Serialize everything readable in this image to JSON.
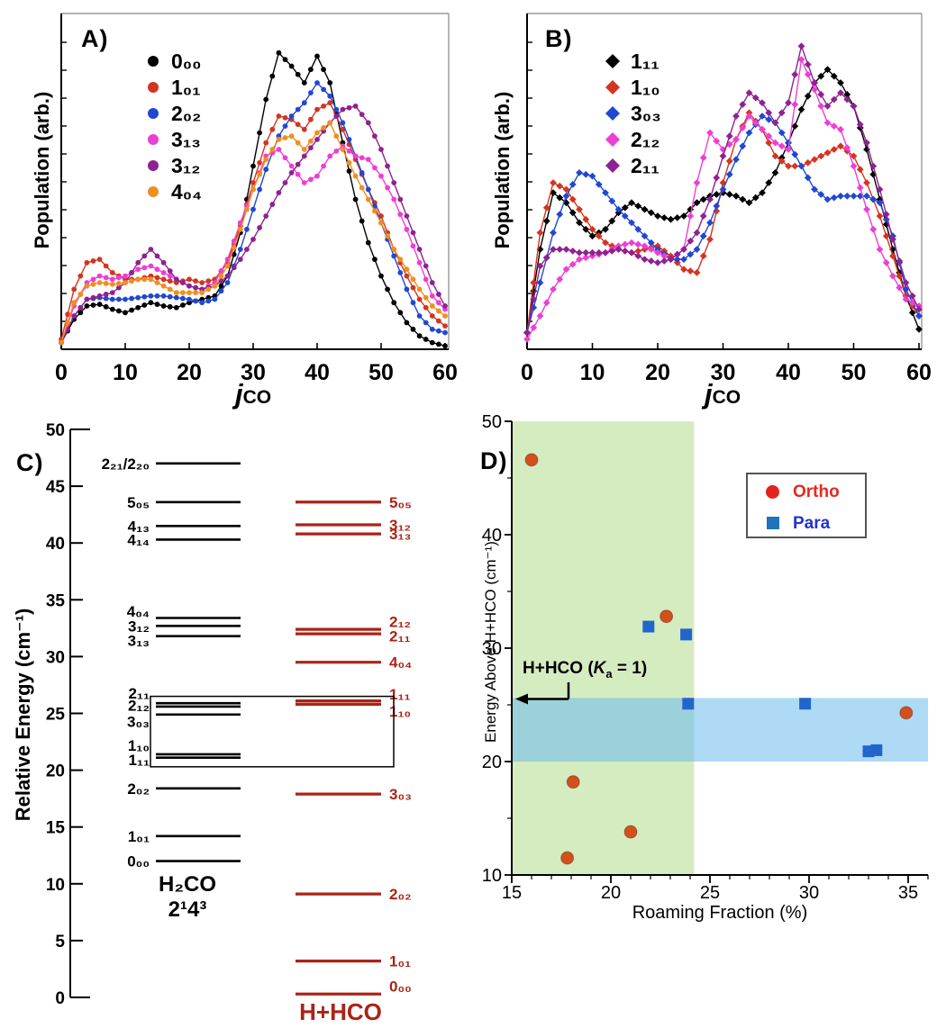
{
  "background": "#ffffff",
  "chart_data": [
    {
      "id": "A",
      "type": "line",
      "title": "A)",
      "xlabel_j": "j",
      "xlabel_co": "CO",
      "ylabel": "Population (arb.)",
      "xlim": [
        0,
        60.6
      ],
      "ylim": [
        0,
        1
      ],
      "x_ticks": [
        0,
        10,
        20,
        30,
        40,
        50,
        60
      ],
      "grid": false,
      "legend_position": "upper-left",
      "x": [
        0,
        2,
        4,
        6,
        8,
        10,
        12,
        14,
        16,
        18,
        20,
        22,
        24,
        26,
        28,
        30,
        32,
        34,
        36,
        38,
        40,
        42,
        44,
        46,
        48,
        50,
        52,
        54,
        56,
        58,
        60
      ],
      "series": [
        {
          "name": "0₀₀",
          "color": "#000000",
          "marker": "circle",
          "values": [
            0.02,
            0.09,
            0.13,
            0.135,
            0.12,
            0.11,
            0.125,
            0.14,
            0.13,
            0.125,
            0.14,
            0.15,
            0.16,
            0.22,
            0.35,
            0.55,
            0.75,
            0.89,
            0.85,
            0.8,
            0.88,
            0.8,
            0.62,
            0.45,
            0.32,
            0.22,
            0.14,
            0.08,
            0.04,
            0.02,
            0.01
          ]
        },
        {
          "name": "1₀₁",
          "color": "#d43420",
          "marker": "circle",
          "values": [
            0.03,
            0.18,
            0.26,
            0.27,
            0.23,
            0.21,
            0.21,
            0.22,
            0.21,
            0.2,
            0.21,
            0.2,
            0.21,
            0.26,
            0.37,
            0.5,
            0.62,
            0.7,
            0.69,
            0.66,
            0.72,
            0.74,
            0.66,
            0.57,
            0.48,
            0.4,
            0.3,
            0.22,
            0.15,
            0.1,
            0.07
          ]
        },
        {
          "name": "2₀₂",
          "color": "#2048d0",
          "marker": "circle",
          "values": [
            0.02,
            0.1,
            0.15,
            0.155,
            0.15,
            0.15,
            0.155,
            0.16,
            0.16,
            0.155,
            0.15,
            0.14,
            0.15,
            0.2,
            0.3,
            0.42,
            0.54,
            0.64,
            0.7,
            0.74,
            0.8,
            0.76,
            0.68,
            0.58,
            0.48,
            0.38,
            0.28,
            0.18,
            0.1,
            0.06,
            0.05
          ]
        },
        {
          "name": "3₁₃",
          "color": "#ec3fd4",
          "marker": "circle",
          "values": [
            0.02,
            0.13,
            0.2,
            0.22,
            0.21,
            0.22,
            0.24,
            0.25,
            0.23,
            0.21,
            0.19,
            0.18,
            0.2,
            0.27,
            0.38,
            0.48,
            0.58,
            0.6,
            0.55,
            0.5,
            0.52,
            0.58,
            0.61,
            0.58,
            0.57,
            0.52,
            0.45,
            0.36,
            0.26,
            0.16,
            0.12
          ]
        },
        {
          "name": "3₁₂",
          "color": "#8e2290",
          "marker": "circle",
          "values": [
            0.02,
            0.1,
            0.15,
            0.16,
            0.17,
            0.2,
            0.26,
            0.3,
            0.26,
            0.21,
            0.19,
            0.18,
            0.19,
            0.22,
            0.27,
            0.33,
            0.4,
            0.47,
            0.53,
            0.58,
            0.63,
            0.68,
            0.72,
            0.73,
            0.68,
            0.6,
            0.5,
            0.4,
            0.3,
            0.2,
            0.13
          ]
        },
        {
          "name": "4₀₄",
          "color": "#ef8f1f",
          "marker": "circle",
          "values": [
            0.02,
            0.14,
            0.19,
            0.2,
            0.195,
            0.2,
            0.21,
            0.21,
            0.19,
            0.17,
            0.17,
            0.17,
            0.19,
            0.25,
            0.36,
            0.48,
            0.57,
            0.63,
            0.64,
            0.6,
            0.65,
            0.68,
            0.6,
            0.52,
            0.45,
            0.38,
            0.3,
            0.24,
            0.18,
            0.13,
            0.1
          ]
        }
      ]
    },
    {
      "id": "B",
      "type": "line",
      "title": "B)",
      "xlabel_j": "j",
      "xlabel_co": "CO",
      "ylabel": "Population (arb.)",
      "xlim": [
        0,
        60.6
      ],
      "ylim": [
        0,
        1
      ],
      "x_ticks": [
        0,
        10,
        20,
        30,
        40,
        50,
        60
      ],
      "grid": false,
      "legend_position": "upper-left",
      "x": [
        0,
        2,
        4,
        6,
        8,
        10,
        12,
        14,
        16,
        18,
        20,
        22,
        24,
        26,
        28,
        30,
        32,
        34,
        36,
        38,
        40,
        42,
        44,
        46,
        48,
        50,
        52,
        54,
        56,
        58,
        60
      ],
      "series": [
        {
          "name": "1₁₁",
          "color": "#000000",
          "marker": "diamond",
          "values": [
            0.05,
            0.3,
            0.47,
            0.44,
            0.38,
            0.34,
            0.36,
            0.41,
            0.44,
            0.42,
            0.4,
            0.39,
            0.4,
            0.44,
            0.46,
            0.47,
            0.46,
            0.44,
            0.47,
            0.53,
            0.62,
            0.72,
            0.8,
            0.84,
            0.8,
            0.73,
            0.6,
            0.45,
            0.3,
            0.16,
            0.06
          ]
        },
        {
          "name": "1₁₀",
          "color": "#d43420",
          "marker": "diamond",
          "values": [
            0.05,
            0.35,
            0.5,
            0.48,
            0.42,
            0.36,
            0.32,
            0.3,
            0.29,
            0.3,
            0.31,
            0.28,
            0.24,
            0.23,
            0.33,
            0.5,
            0.63,
            0.71,
            0.66,
            0.58,
            0.55,
            0.55,
            0.57,
            0.59,
            0.61,
            0.58,
            0.5,
            0.4,
            0.28,
            0.16,
            0.1
          ]
        },
        {
          "name": "3₀₃",
          "color": "#2048d0",
          "marker": "diamond",
          "values": [
            0.05,
            0.2,
            0.35,
            0.46,
            0.53,
            0.52,
            0.47,
            0.42,
            0.38,
            0.34,
            0.3,
            0.27,
            0.27,
            0.3,
            0.38,
            0.48,
            0.57,
            0.65,
            0.7,
            0.68,
            0.62,
            0.55,
            0.48,
            0.45,
            0.46,
            0.46,
            0.46,
            0.44,
            0.34,
            0.18,
            0.1
          ]
        },
        {
          "name": "2₁₂",
          "color": "#ec3fd4",
          "marker": "diamond",
          "values": [
            0.03,
            0.1,
            0.18,
            0.24,
            0.27,
            0.28,
            0.29,
            0.31,
            0.32,
            0.31,
            0.29,
            0.27,
            0.3,
            0.5,
            0.65,
            0.6,
            0.63,
            0.7,
            0.66,
            0.62,
            0.6,
            0.87,
            0.78,
            0.68,
            0.66,
            0.55,
            0.42,
            0.3,
            0.22,
            0.15,
            0.13
          ]
        },
        {
          "name": "2₁₁",
          "color": "#8e2290",
          "marker": "diamond",
          "values": [
            0.05,
            0.25,
            0.3,
            0.3,
            0.29,
            0.29,
            0.29,
            0.3,
            0.29,
            0.27,
            0.26,
            0.27,
            0.3,
            0.35,
            0.45,
            0.58,
            0.7,
            0.77,
            0.74,
            0.68,
            0.74,
            0.91,
            0.8,
            0.73,
            0.77,
            0.73,
            0.62,
            0.48,
            0.33,
            0.2,
            0.12
          ]
        }
      ]
    },
    {
      "id": "C",
      "type": "energy-levels",
      "title": "C)",
      "ylabel": "Relative Energy (cm⁻¹)",
      "ylim": [
        0,
        50
      ],
      "y_ticks": [
        0,
        5,
        10,
        15,
        20,
        25,
        30,
        35,
        40,
        45,
        50
      ],
      "box_E_range": [
        20.3,
        26.5
      ],
      "columns": [
        {
          "name": "H₂CO",
          "state_label": "2¹4³",
          "color": "#000000",
          "label_side": "left",
          "levels": [
            {
              "label": "2₂₁/2₂₀",
              "E": 47.0
            },
            {
              "label": "5₀₅",
              "E": 43.6
            },
            {
              "label": "4₁₃",
              "E": 41.5
            },
            {
              "label": "4₁₄",
              "E": 40.3
            },
            {
              "label": "4₀₄",
              "E": 33.4,
              "label_E": 34.0
            },
            {
              "label": "3₁₂",
              "E": 32.7
            },
            {
              "label": "3₁₃",
              "E": 31.8,
              "label_E": 31.4
            },
            {
              "label": "2₁₁",
              "E": 25.9,
              "label_E": 26.8
            },
            {
              "label": "2₁₂",
              "E": 25.6,
              "label_E": 25.7
            },
            {
              "label": "3₀₃",
              "E": 24.9,
              "label_E": 24.3
            },
            {
              "label": "1₁₀",
              "E": 21.4,
              "label_E": 22.2
            },
            {
              "label": "1₁₁",
              "E": 21.1,
              "label_E": 20.9
            },
            {
              "label": "2₀₂",
              "E": 18.4
            },
            {
              "label": "1₀₁",
              "E": 14.2
            },
            {
              "label": "0₀₀",
              "E": 12.0
            }
          ]
        },
        {
          "name": "H+HCO",
          "color": "#ab2317",
          "label_side": "right",
          "levels": [
            {
              "label": "5₀₅",
              "E": 43.6
            },
            {
              "label": "3₁₂",
              "E": 41.6
            },
            {
              "label": "3₁₃",
              "E": 40.8
            },
            {
              "label": "2₁₂",
              "E": 32.4,
              "label_E": 33.1
            },
            {
              "label": "2₁₁",
              "E": 32.0,
              "label_E": 31.8
            },
            {
              "label": "4₀₄",
              "E": 29.5
            },
            {
              "label": "1₁₁",
              "E": 26.1,
              "label_E": 26.7
            },
            {
              "label": "1₁₀",
              "E": 25.8,
              "label_E": 25.2
            },
            {
              "label": "3₀₃",
              "E": 17.9
            },
            {
              "label": "2₀₂",
              "E": 9.1
            },
            {
              "label": "1₀₁",
              "E": 3.2
            },
            {
              "label": "0₀₀",
              "E": 0.3,
              "label_E": 1.0
            }
          ]
        }
      ]
    },
    {
      "id": "D",
      "type": "scatter",
      "title": "D)",
      "xlabel": "Roaming Fraction (%)",
      "ylabel": "Energy Above H+HCO (cm⁻¹)",
      "xlim": [
        15,
        36
      ],
      "ylim": [
        10,
        50
      ],
      "x_ticks": [
        15,
        20,
        25,
        30,
        35
      ],
      "y_ticks": [
        10,
        20,
        30,
        40,
        50
      ],
      "annotation": {
        "pre": "H+HCO (",
        "k": "K",
        "k_sub": "a",
        "post": " = 1)"
      },
      "regions": {
        "green": {
          "x_range": [
            15,
            24.2
          ],
          "color": "#d5ecc1"
        },
        "blue_band": {
          "y_range": [
            20,
            25.6
          ],
          "color": "rgba(108,188,238,0.55)"
        }
      },
      "series": [
        {
          "name": "Ortho",
          "marker": "circle",
          "color": "#d2501e",
          "label_color": "#e8281c",
          "points": [
            [
              16,
              46.6
            ],
            [
              22.8,
              32.8
            ],
            [
              18.1,
              18.2
            ],
            [
              21,
              13.8
            ],
            [
              17.8,
              11.5
            ],
            [
              34.9,
              24.3
            ]
          ]
        },
        {
          "name": "Para",
          "marker": "square",
          "color": "#2266cc",
          "label_color": "#2233cc",
          "points": [
            [
              21.9,
              31.9
            ],
            [
              23.8,
              31.2
            ],
            [
              23.9,
              25.1
            ],
            [
              29.8,
              25.1
            ],
            [
              33,
              20.9
            ],
            [
              33.4,
              21.0
            ]
          ]
        }
      ]
    }
  ]
}
